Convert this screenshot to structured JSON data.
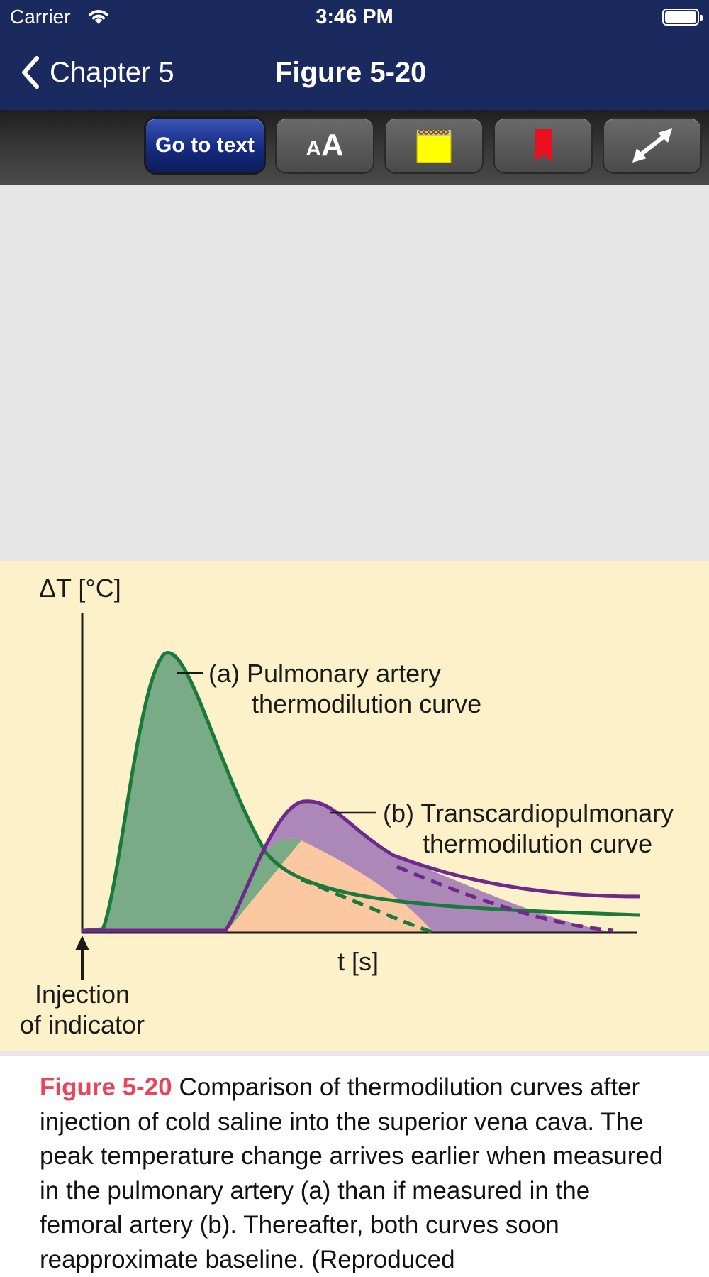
{
  "status_bar": {
    "carrier": "Carrier",
    "time": "3:46 PM"
  },
  "nav": {
    "back_label": "Chapter 5",
    "title": "Figure 5-20"
  },
  "toolbar": {
    "goto_text_label": "Go to text",
    "font_size_small": "A",
    "font_size_big": "A",
    "icons": [
      "font-size-icon",
      "note-icon",
      "bookmark-icon",
      "expand-icon"
    ]
  },
  "figure": {
    "y_axis_label": "ΔT [°C]",
    "x_axis_label": "t [s]",
    "curve_a_label_line1": "(a) Pulmonary artery",
    "curve_a_label_line2": "thermodilution curve",
    "curve_b_label_line1": "(b) Transcardiopulmonary",
    "curve_b_label_line2": "thermodilution curve",
    "injection_label_line1": "Injection",
    "injection_label_line2": "of indicator",
    "colors": {
      "curve_a": "#1a7a3c",
      "curve_a_fill": "#79ab86",
      "curve_b": "#6e2a8a",
      "curve_b_fill": "#ab88b8",
      "overlap_fill": "#fbc8a2",
      "panel_background": "#fdf1ca"
    }
  },
  "caption": {
    "label": "Figure 5-20",
    "text": " Comparison of thermodilution curves after injection of cold saline into the superior vena cava. The peak temperature change arrives earlier when measured in the pulmonary artery (a) than if measured in the femoral artery (b). Thereafter, both curves soon reapproximate baseline. (Reproduced"
  }
}
